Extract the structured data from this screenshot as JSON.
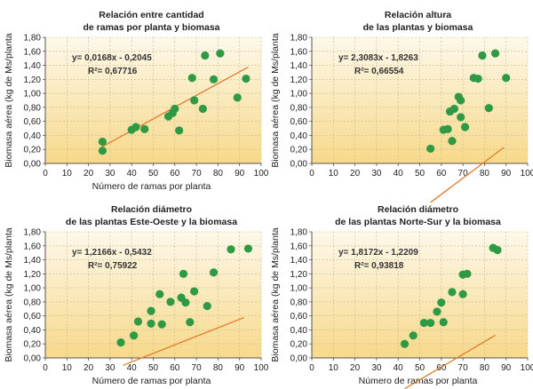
{
  "colors": {
    "bg_top": "#fdf8ea",
    "bg_bottom": "#f7d98a",
    "point": "#2e9a44",
    "trendline": "#e07b2a",
    "grid": "#c9b98f",
    "axis": "#555555"
  },
  "chart_data": [
    {
      "type": "scatter",
      "title_lines": [
        "Relación entre cantidad",
        "de ramas por planta y biomasa"
      ],
      "xlabel": "Número de ramas por planta",
      "ylabel": "Biomasa aérea (kg de Ms/planta",
      "xlim": [
        0,
        100
      ],
      "ylim": [
        0,
        1.8
      ],
      "xticks": [
        "0",
        "10",
        "20",
        "30",
        "40",
        "50",
        "60",
        "70",
        "80",
        "90",
        "100"
      ],
      "yticks": [
        "0,00",
        "0,20",
        "0,40",
        "0,60",
        "0,80",
        "1,00",
        "1,20",
        "1,40",
        "1,60",
        "1,80"
      ],
      "equation": "y= 0,0168x - 0,2045",
      "r2": "R²= 0,67716",
      "trend": {
        "slope": 0.0168,
        "intercept": -0.2045,
        "x_range": [
          26,
          94
        ]
      },
      "points": [
        [
          26.5,
          0.18
        ],
        [
          26.5,
          0.31
        ],
        [
          40,
          0.48
        ],
        [
          42,
          0.52
        ],
        [
          46,
          0.49
        ],
        [
          57,
          0.67
        ],
        [
          59,
          0.72
        ],
        [
          60,
          0.78
        ],
        [
          62,
          0.47
        ],
        [
          68,
          1.22
        ],
        [
          69,
          0.9
        ],
        [
          73,
          0.78
        ],
        [
          74,
          1.54
        ],
        [
          78,
          1.2
        ],
        [
          81,
          1.57
        ],
        [
          89,
          0.94
        ],
        [
          93,
          1.21
        ]
      ]
    },
    {
      "type": "scatter",
      "title_lines": [
        "Relación altura",
        "de las plantas y biomasa"
      ],
      "xlabel": "",
      "ylabel": "Biomasa aérea (kg de Ms/planta",
      "xlim": [
        0,
        100
      ],
      "ylim": [
        0,
        1.8
      ],
      "xticks": [
        "0",
        "10",
        "20",
        "30",
        "40",
        "50",
        "60",
        "70",
        "80",
        "90",
        "100"
      ],
      "yticks": [
        "0,00",
        "0,20",
        "0,40",
        "0,60",
        "0,80",
        "1,00",
        "1,20",
        "1,40",
        "1,60",
        "1,80"
      ],
      "equation": "y= 2,3083x - 1,8263",
      "r2": "R²= 0,66554",
      "trend": {
        "slope": 0.023083,
        "intercept": -1.8263,
        "x_range": [
          55,
          89
        ]
      },
      "points": [
        [
          55,
          0.21
        ],
        [
          61,
          0.48
        ],
        [
          63,
          0.49
        ],
        [
          64,
          0.74
        ],
        [
          65,
          0.32
        ],
        [
          66,
          0.78
        ],
        [
          68,
          0.95
        ],
        [
          69,
          0.66
        ],
        [
          69,
          0.9
        ],
        [
          71,
          0.52
        ],
        [
          75,
          1.22
        ],
        [
          77,
          1.21
        ],
        [
          79,
          1.54
        ],
        [
          82,
          0.79
        ],
        [
          85,
          1.57
        ],
        [
          90,
          1.22
        ]
      ]
    },
    {
      "type": "scatter",
      "title_lines": [
        "Relación diámetro",
        "de las plantas Este-Oeste y la biomasa"
      ],
      "xlabel": "Número de ramas por planta",
      "ylabel": "Biomasa aérea (kg de Ms/planta",
      "xlim": [
        0,
        100
      ],
      "ylim": [
        0,
        1.8
      ],
      "xticks": [
        "0",
        "10",
        "20",
        "30",
        "40",
        "50",
        "60",
        "70",
        "80",
        "90",
        "100"
      ],
      "yticks": [
        "0,00",
        "0,20",
        "0,40",
        "0,60",
        "0,80",
        "1,00",
        "1,20",
        "1,40",
        "1,60",
        "1,80"
      ],
      "equation": "y= 1,2166x - 0,5432",
      "r2": "R²= 0,75922",
      "trend": {
        "slope": 0.012166,
        "intercept": -0.5432,
        "x_range": [
          36,
          92
        ]
      },
      "points": [
        [
          35,
          0.22
        ],
        [
          41,
          0.32
        ],
        [
          43,
          0.52
        ],
        [
          49,
          0.67
        ],
        [
          49,
          0.49
        ],
        [
          53,
          0.91
        ],
        [
          54,
          0.48
        ],
        [
          58,
          0.8
        ],
        [
          64,
          1.2
        ],
        [
          63,
          0.86
        ],
        [
          65,
          0.79
        ],
        [
          67,
          0.51
        ],
        [
          69,
          0.95
        ],
        [
          75,
          0.74
        ],
        [
          78,
          1.22
        ],
        [
          86,
          1.55
        ],
        [
          94,
          1.56
        ]
      ]
    },
    {
      "type": "scatter",
      "title_lines": [
        "Relación diámetro",
        "de las plantas Norte-Sur y la biomasa"
      ],
      "xlabel": "Número de ramas por planta",
      "ylabel": "Biomasa aérea (kg de Ms/planta",
      "xlim": [
        0,
        100
      ],
      "ylim": [
        0,
        1.8
      ],
      "xticks": [
        "0",
        "10",
        "20",
        "30",
        "40",
        "50",
        "60",
        "70",
        "80",
        "90",
        "100"
      ],
      "yticks": [
        "0,00",
        "0,20",
        "0,40",
        "0,60",
        "0,80",
        "1,00",
        "1,20",
        "1,40",
        "1,60",
        "1,80"
      ],
      "equation": "y= 1,8172x - 1,2209",
      "r2": "R²= 0,93818",
      "trend": {
        "slope": 0.018172,
        "intercept": -1.2209,
        "x_range": [
          43,
          85
        ]
      },
      "points": [
        [
          43,
          0.2
        ],
        [
          47,
          0.32
        ],
        [
          52,
          0.5
        ],
        [
          55,
          0.5
        ],
        [
          58,
          0.66
        ],
        [
          60,
          0.79
        ],
        [
          61,
          0.51
        ],
        [
          65,
          0.94
        ],
        [
          70,
          1.19
        ],
        [
          70,
          0.91
        ],
        [
          72,
          1.2
        ],
        [
          84,
          1.57
        ],
        [
          86,
          1.54
        ]
      ]
    }
  ]
}
